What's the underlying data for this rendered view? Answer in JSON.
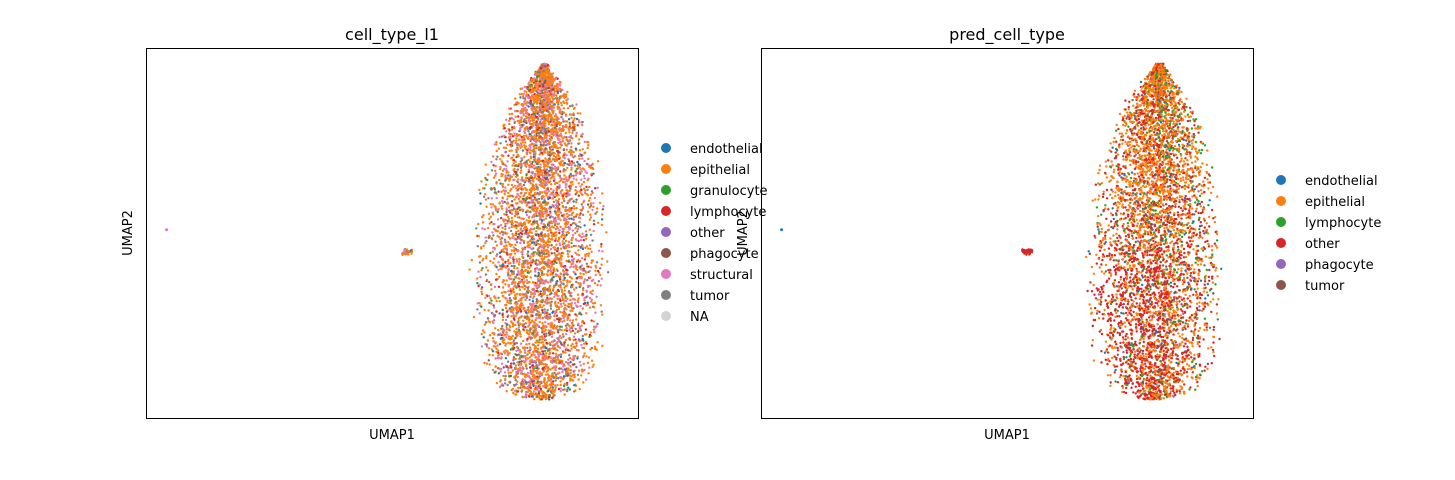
{
  "chart_data": [
    {
      "type": "scatter",
      "title": "cell_type_l1",
      "xlabel": "UMAP1",
      "ylabel": "UMAP2",
      "grid": false,
      "ticks": false,
      "legend_placement": "right-outside",
      "legend": [
        {
          "label": "endothelial",
          "color": "#1f77b4"
        },
        {
          "label": "epithelial",
          "color": "#ff7f0e"
        },
        {
          "label": "granulocyte",
          "color": "#2ca02c"
        },
        {
          "label": "lymphocyte",
          "color": "#d62728"
        },
        {
          "label": "other",
          "color": "#9467bd"
        },
        {
          "label": "phagocyte",
          "color": "#8c564b"
        },
        {
          "label": "structural",
          "color": "#e377c2"
        },
        {
          "label": "tumor",
          "color": "#7f7f7f"
        },
        {
          "label": "NA",
          "color": "#d3d3d3"
        }
      ],
      "clusters": [
        {
          "name": "main",
          "x_range": [
            0.66,
            0.95
          ],
          "y_range": [
            0.05,
            0.96
          ],
          "share": 0.985
        },
        {
          "name": "small",
          "center": [
            0.53,
            0.45
          ],
          "share": 0.012
        },
        {
          "name": "outlier",
          "center": [
            0.04,
            0.51
          ],
          "share": 0.003
        }
      ],
      "series_mix": {
        "epithelial": 0.55,
        "structural": 0.18,
        "tumor": 0.12,
        "lymphocyte": 0.06,
        "endothelial": 0.04,
        "other": 0.02,
        "phagocyte": 0.02,
        "granulocyte": 0.01
      }
    },
    {
      "type": "scatter",
      "title": "pred_cell_type",
      "xlabel": "UMAP1",
      "ylabel": "UMAP2",
      "grid": false,
      "ticks": false,
      "legend_placement": "right-outside",
      "legend": [
        {
          "label": "endothelial",
          "color": "#1f77b4"
        },
        {
          "label": "epithelial",
          "color": "#ff7f0e"
        },
        {
          "label": "lymphocyte",
          "color": "#2ca02c"
        },
        {
          "label": "other",
          "color": "#d62728"
        },
        {
          "label": "phagocyte",
          "color": "#9467bd"
        },
        {
          "label": "tumor",
          "color": "#8c564b"
        }
      ],
      "clusters": [
        {
          "name": "main",
          "x_range": [
            0.66,
            0.95
          ],
          "y_range": [
            0.05,
            0.96
          ],
          "share": 0.985
        },
        {
          "name": "small",
          "center": [
            0.54,
            0.45
          ],
          "share": 0.012
        },
        {
          "name": "outlier",
          "center": [
            0.04,
            0.51
          ],
          "share": 0.003
        }
      ],
      "series_mix": {
        "epithelial": 0.46,
        "other": 0.36,
        "lymphocyte": 0.09,
        "endothelial": 0.05,
        "tumor": 0.03,
        "phagocyte": 0.01
      }
    }
  ]
}
